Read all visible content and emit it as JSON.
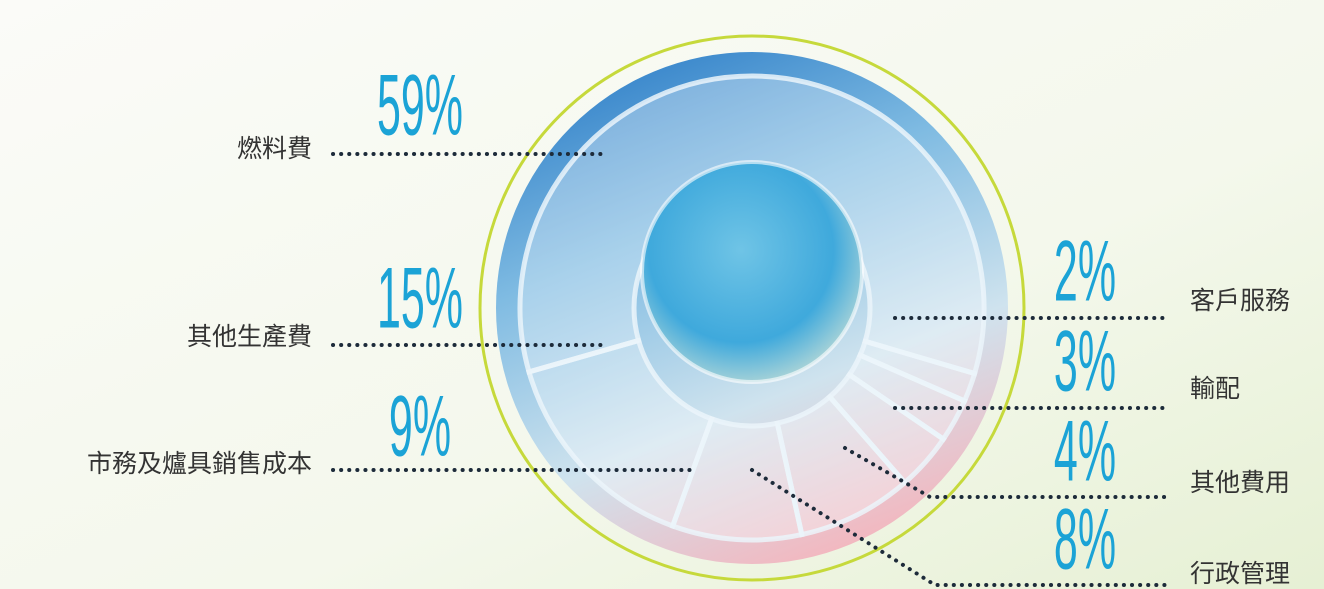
{
  "chart_data": {
    "type": "pie",
    "categories": [
      "燃料費",
      "客戶服務",
      "輸配",
      "其他費用",
      "行政管理",
      "市務及爐具銷售成本",
      "其他生產費"
    ],
    "values": [
      59,
      2,
      3,
      4,
      8,
      9,
      15
    ],
    "value_labels": [
      "59%",
      "2%",
      "3%",
      "4%",
      "8%",
      "9%",
      "15%"
    ]
  }
}
